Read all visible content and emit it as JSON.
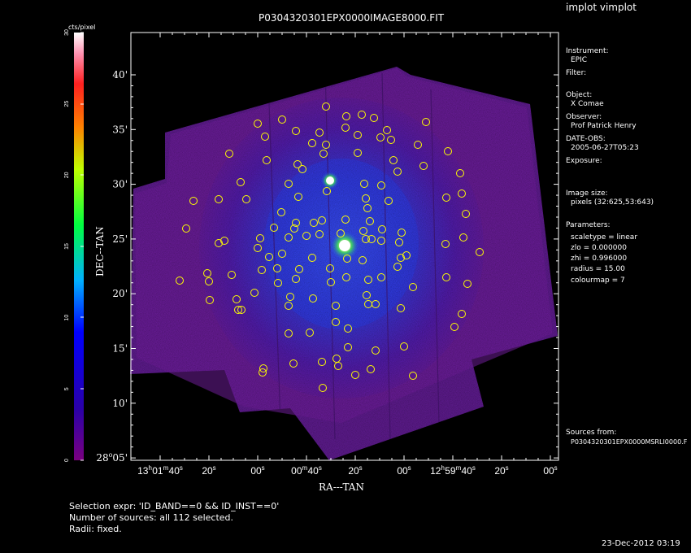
{
  "header": {
    "title": "P0304320301EPX0000IMAGE8000.FIT",
    "program": "implot vimplot"
  },
  "colorbar": {
    "unit": "cts/pixel",
    "ticks": [
      "0",
      "5",
      "10",
      "15",
      "20",
      "25",
      "30"
    ]
  },
  "axes": {
    "xlabel": "RA---TAN",
    "ylabel": "DEC--TAN",
    "x_ticks": [
      {
        "type": "h",
        "h": "13",
        "m": "01",
        "s": "40"
      },
      {
        "type": "s",
        "s": "20"
      },
      {
        "type": "s",
        "s": "00"
      },
      {
        "type": "m",
        "m": "00",
        "s": "40"
      },
      {
        "type": "s",
        "s": "20"
      },
      {
        "type": "s",
        "s": "00"
      },
      {
        "type": "h",
        "h": "12",
        "m": "59",
        "s": "40"
      },
      {
        "type": "s",
        "s": "20"
      },
      {
        "type": "s",
        "s": "00"
      }
    ],
    "y_ticks": [
      {
        "label": "40'"
      },
      {
        "label": "35'"
      },
      {
        "label": "30'"
      },
      {
        "label": "25'"
      },
      {
        "label": "20'"
      },
      {
        "label": "15'"
      },
      {
        "label": "10'"
      },
      {
        "label": "05'",
        "deg": "28"
      }
    ]
  },
  "sidebar": {
    "instrument_label": "Instrument:",
    "instrument": "EPIC",
    "filter_label": "Filter:",
    "object_label": "Object:",
    "object": "X Comae",
    "observer_label": "Observer:",
    "observer": "Prof Patrick Henry",
    "date_label": "DATE-OBS:",
    "date": "2005-06-27T05:23",
    "exposure_label": "Exposure:",
    "image_size_label": "Image size:",
    "image_size": "pixels (32:625,53:643)",
    "parameters_label": "Parameters:",
    "params": [
      "scaletype = linear",
      "zlo = 0.000000",
      "zhi = 0.996000",
      "radius = 15.00",
      "colourmap = 7"
    ],
    "sources_label": "Sources from:",
    "sources_file": "P0304320301EPX0000MSRLI0000.F"
  },
  "footer": {
    "selection": "Selection expr: 'ID_BAND==0 && ID_INST==0'",
    "count": "Number of sources: all 112 selected.",
    "radii": "Radii: fixed.",
    "timestamp": "23-Dec-2012 03:19"
  },
  "colors": {
    "background": "#000000",
    "source_circle": "#ffff00",
    "image_low": "#6a1a8a",
    "image_mid": "#1a3fd0",
    "foreground": "#ffffff"
  }
}
